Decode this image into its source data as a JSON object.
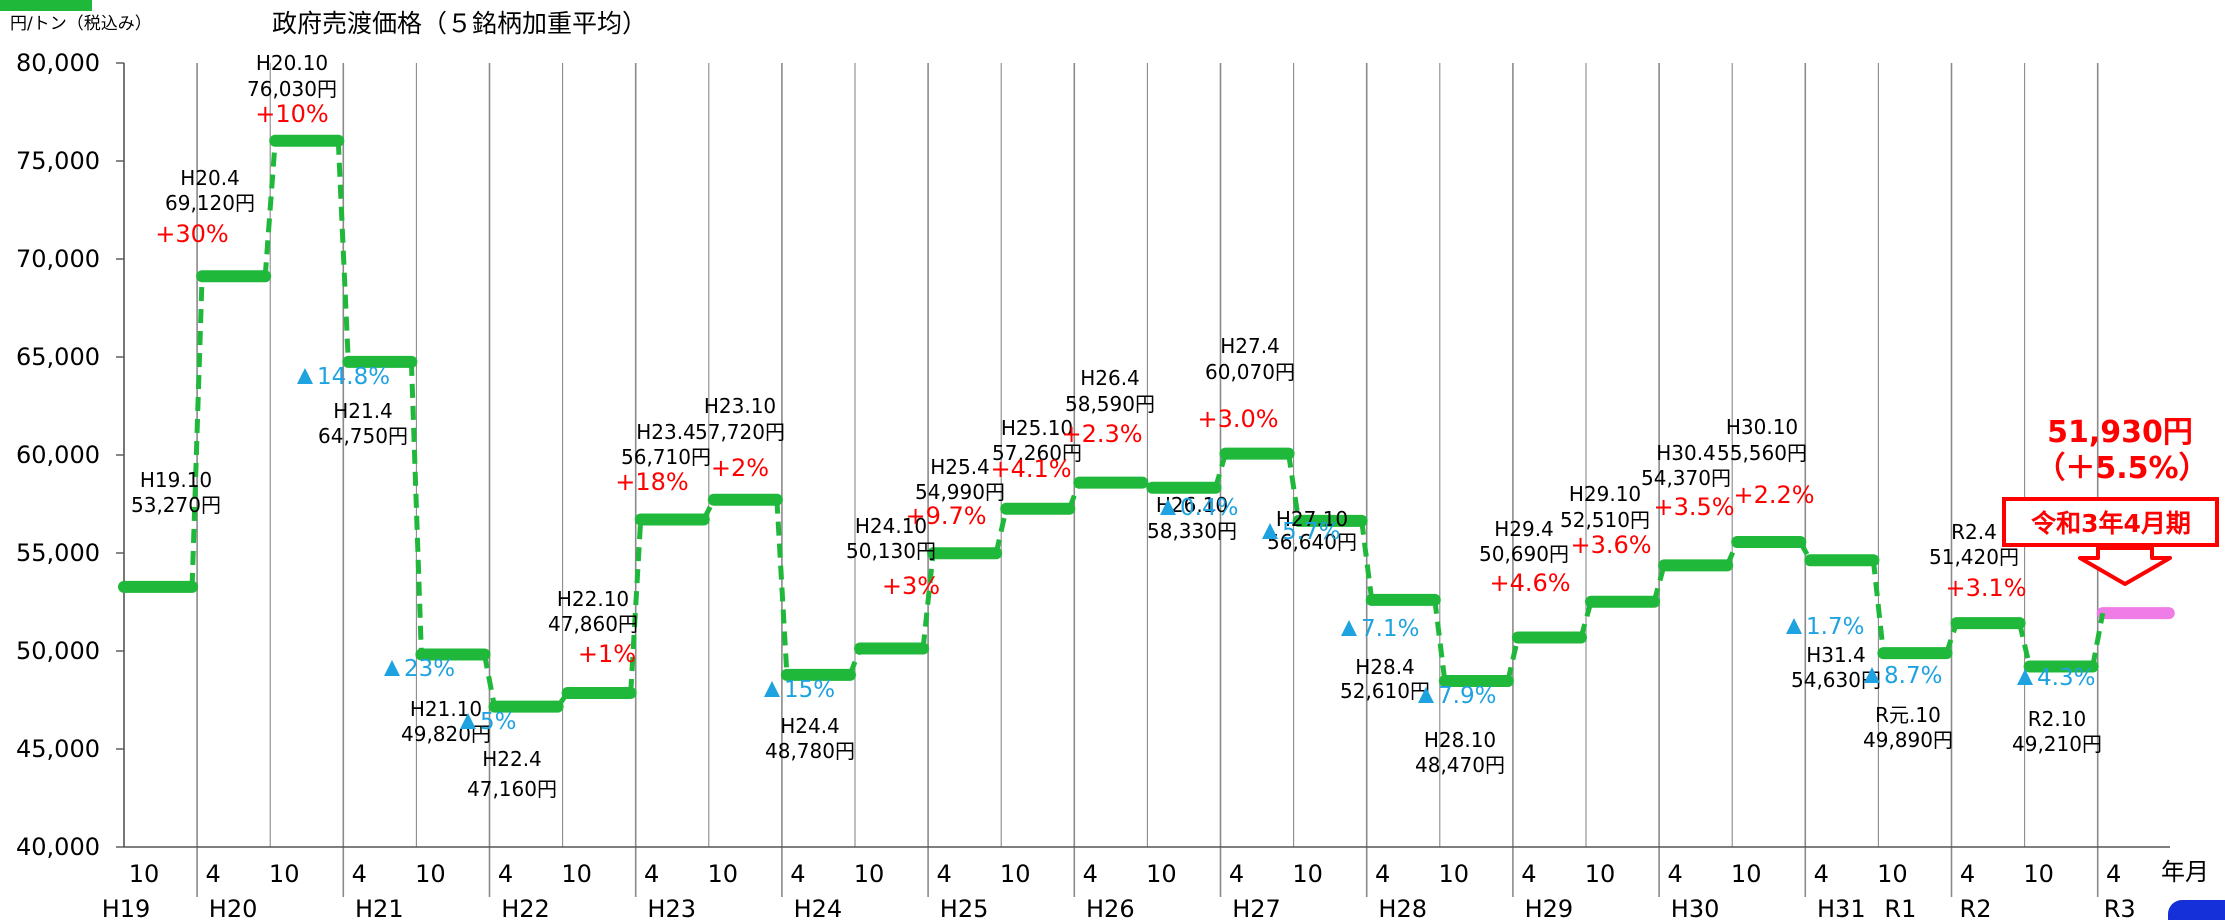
{
  "header": {
    "unit_label": "円/トン（税込み）",
    "legend_label": "政府売渡価格（５銘柄加重平均）",
    "legend_color": "#1fb83a"
  },
  "chart_data": {
    "type": "line",
    "subtype": "step",
    "ylim": [
      40000,
      80000
    ],
    "yticks": [
      "40,000",
      "45,000",
      "50,000",
      "55,000",
      "60,000",
      "65,000",
      "70,000",
      "75,000",
      "80,000"
    ],
    "x_months": [
      "10",
      "4",
      "10",
      "4",
      "10",
      "4",
      "10",
      "4",
      "10",
      "4",
      "10",
      "4",
      "10",
      "4",
      "10",
      "4",
      "10",
      "4",
      "10",
      "4",
      "10",
      "4",
      "10",
      "4",
      "10",
      "4",
      "10",
      "4"
    ],
    "x_years": [
      "H19",
      "H20",
      "H21",
      "H22",
      "H23",
      "H24",
      "H25",
      "H26",
      "H27",
      "H28",
      "H29",
      "H30",
      "H31",
      "R1",
      "R2",
      "R3"
    ],
    "xlabel": "年月",
    "grid": "vertical",
    "series": [
      {
        "name": "政府売渡価格（５銘柄加重平均）",
        "color": "#1fb83a",
        "values": [
          53270,
          69120,
          76030,
          64750,
          49820,
          47160,
          47860,
          56710,
          57720,
          48780,
          50130,
          54990,
          57260,
          58590,
          58330,
          60070,
          56640,
          52610,
          48470,
          50690,
          52510,
          54370,
          55560,
          54630,
          49890,
          51420,
          49210,
          51930
        ]
      }
    ],
    "annotations": [
      {
        "period": "H19.10",
        "value": "53,270円",
        "change": ""
      },
      {
        "period": "H20.4",
        "value": "69,120円",
        "change": "+30%"
      },
      {
        "period": "H20.10",
        "value": "76,030円",
        "change": "+10%"
      },
      {
        "period": "H21.4",
        "value": "64,750円",
        "change": "▲14.8%"
      },
      {
        "period": "H21.10",
        "value": "49,820円",
        "change": "▲23%"
      },
      {
        "period": "H22.4",
        "value": "47,160円",
        "change": "▲5%"
      },
      {
        "period": "H22.10",
        "value": "47,860円",
        "change": "+1%"
      },
      {
        "period": "H23.4",
        "value": "56,710円",
        "change": "+18%"
      },
      {
        "period": "H23.10",
        "value": "57,720円",
        "change": "+2%"
      },
      {
        "period": "H24.4",
        "value": "48,780円",
        "change": "▲15%"
      },
      {
        "period": "H24.10",
        "value": "50,130円",
        "change": "+3%"
      },
      {
        "period": "H25.4",
        "value": "54,990円",
        "change": "+9.7%"
      },
      {
        "period": "H25.10",
        "value": "57,260円",
        "change": "+4.1%"
      },
      {
        "period": "H26.4",
        "value": "58,590円",
        "change": "+2.3%"
      },
      {
        "period": "H26.10",
        "value": "58,330円",
        "change": "▲0.4%"
      },
      {
        "period": "H27.4",
        "value": "60,070円",
        "change": "+3.0%"
      },
      {
        "period": "H27.10",
        "value": "56,640円",
        "change": "▲5.7%"
      },
      {
        "period": "H28.4",
        "value": "52,610円",
        "change": "▲7.1%"
      },
      {
        "period": "H28.10",
        "value": "48,470円",
        "change": "▲7.9%"
      },
      {
        "period": "H29.4",
        "value": "50,690円",
        "change": "+4.6%"
      },
      {
        "period": "H29.10",
        "value": "52,510円",
        "change": "+3.6%"
      },
      {
        "period": "H30.4",
        "value": "54,370円",
        "change": "+3.5%"
      },
      {
        "period": "H30.10",
        "value": "55,560円",
        "change": "+2.2%"
      },
      {
        "period": "H31.4",
        "value": "54,630円",
        "change": "▲1.7%"
      },
      {
        "period": "R元.10",
        "value": "49,890円",
        "change": "▲8.7%"
      },
      {
        "period": "R2.4",
        "value": "51,420円",
        "change": "+3.1%"
      },
      {
        "period": "R2.10",
        "value": "49,210円",
        "change": "▲4.3%"
      }
    ],
    "highlight": {
      "value": "51,930円",
      "change": "（＋5.5%）",
      "label": "令和3年4月期",
      "bar_color": "#f07ce8",
      "text_color": "#ff0000"
    },
    "colors": {
      "increase": "#ff0000",
      "decrease": "#1fa3e0"
    }
  }
}
